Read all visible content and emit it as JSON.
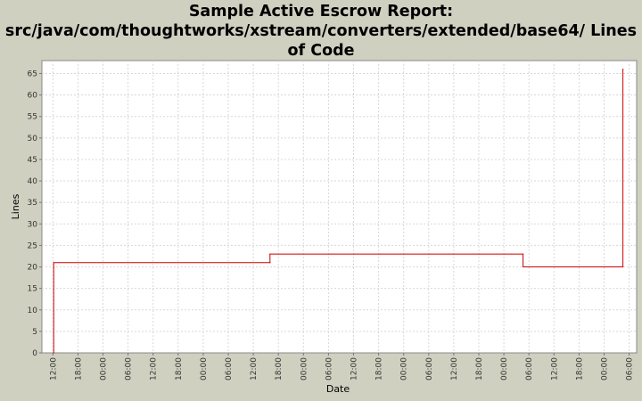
{
  "chart_data": {
    "type": "line",
    "title_line1": "Sample Active Escrow Report:",
    "title_line2": "src/java/com/thoughtworks/xstream/converters/extended/base64/ Lines",
    "title_line3": "of Code",
    "xlabel": "Date",
    "ylabel": "Lines",
    "ylim": [
      0,
      68
    ],
    "yticks": [
      0,
      5,
      10,
      15,
      20,
      25,
      30,
      35,
      40,
      45,
      50,
      55,
      60,
      65
    ],
    "xticks": [
      "12:00",
      "18:00",
      "00:00",
      "06:00",
      "12:00",
      "18:00",
      "00:00",
      "06:00",
      "12:00",
      "18:00",
      "00:00",
      "06:00",
      "12:00",
      "18:00",
      "00:00",
      "06:00",
      "12:00",
      "18:00",
      "00:00",
      "06:00",
      "12:00",
      "18:00",
      "00:00",
      "06:00"
    ],
    "x_hours_per_tick": 6,
    "grid": true,
    "step": true,
    "line_color": "#cc0000",
    "series": [
      {
        "x_hours": [
          0.2,
          0.2,
          52.0,
          52.0,
          112.6,
          112.6,
          136.5,
          136.5
        ],
        "values": [
          0,
          21,
          21,
          23,
          23,
          20,
          20,
          66
        ]
      }
    ]
  }
}
